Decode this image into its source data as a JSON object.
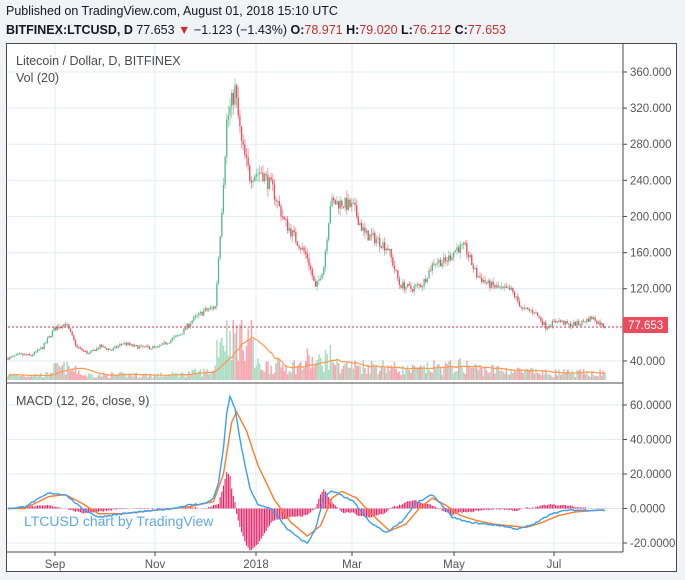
{
  "header": {
    "published": "Published on TradingView.com, August 01, 2018 15:10 UTC",
    "symbol": "BITFINEX:LTCUSD, D",
    "last": "77.653",
    "change_arrow": "▼",
    "change": "−1.123 (−1.43%)",
    "o_label": "O:",
    "o": "78.971",
    "h_label": "H:",
    "h": "79.020",
    "l_label": "L:",
    "l": "76.212",
    "c_label": "C:",
    "c": "77.653"
  },
  "legend": {
    "title": "Litecoin / Dollar, D, BITFINEX",
    "volume": "Vol (20)",
    "macd": "MACD (12, 26, close, 9)"
  },
  "watermark": "LTCUSD chart by TradingView",
  "colors": {
    "up": "#53b987",
    "down": "#eb4d5c",
    "vol_up": "#a9dcc3",
    "vol_down": "#f5a6ae",
    "vol_ma": "#ff9850",
    "macd": "#2196f3",
    "signal": "#ff6d00",
    "hist": "#e91e63",
    "price_line": "#e0304a",
    "grid": "#e1ecf2"
  },
  "chart_data": [
    {
      "type": "candlestick",
      "title": "Litecoin / Dollar, D, BITFINEX",
      "pane": "price",
      "ylim": [
        20,
        375
      ],
      "y_ticks": [
        "360.000",
        "320.000",
        "280.000",
        "240.000",
        "200.000",
        "160.000",
        "120.000",
        "40.000"
      ],
      "last_price_label": "77.653",
      "x_ticks": [
        "Sep",
        "Nov",
        "2018",
        "Mar",
        "May",
        "Jul"
      ],
      "weekly_closes_approx": [
        {
          "x": "2017-08-03",
          "close": 43
        },
        {
          "x": "2017-08-10",
          "close": 47
        },
        {
          "x": "2017-08-17",
          "close": 46
        },
        {
          "x": "2017-08-24",
          "close": 55
        },
        {
          "x": "2017-08-31",
          "close": 75
        },
        {
          "x": "2017-09-07",
          "close": 82
        },
        {
          "x": "2017-09-14",
          "close": 55
        },
        {
          "x": "2017-09-21",
          "close": 48
        },
        {
          "x": "2017-09-28",
          "close": 56
        },
        {
          "x": "2017-10-05",
          "close": 52
        },
        {
          "x": "2017-10-12",
          "close": 60
        },
        {
          "x": "2017-10-19",
          "close": 56
        },
        {
          "x": "2017-10-26",
          "close": 55
        },
        {
          "x": "2017-11-02",
          "close": 55
        },
        {
          "x": "2017-11-09",
          "close": 62
        },
        {
          "x": "2017-11-16",
          "close": 70
        },
        {
          "x": "2017-11-23",
          "close": 85
        },
        {
          "x": "2017-11-30",
          "close": 95
        },
        {
          "x": "2017-12-07",
          "close": 100
        },
        {
          "x": "2017-12-11",
          "close": 210
        },
        {
          "x": "2017-12-14",
          "close": 305
        },
        {
          "x": "2017-12-19",
          "close": 340
        },
        {
          "x": "2017-12-23",
          "close": 280
        },
        {
          "x": "2017-12-28",
          "close": 245
        },
        {
          "x": "2018-01-04",
          "close": 250
        },
        {
          "x": "2018-01-11",
          "close": 230
        },
        {
          "x": "2018-01-18",
          "close": 195
        },
        {
          "x": "2018-01-25",
          "close": 175
        },
        {
          "x": "2018-02-01",
          "close": 155
        },
        {
          "x": "2018-02-06",
          "close": 120
        },
        {
          "x": "2018-02-11",
          "close": 145
        },
        {
          "x": "2018-02-15",
          "close": 215
        },
        {
          "x": "2018-02-22",
          "close": 215
        },
        {
          "x": "2018-03-01",
          "close": 210
        },
        {
          "x": "2018-03-08",
          "close": 180
        },
        {
          "x": "2018-03-15",
          "close": 175
        },
        {
          "x": "2018-03-22",
          "close": 165
        },
        {
          "x": "2018-03-29",
          "close": 125
        },
        {
          "x": "2018-04-05",
          "close": 120
        },
        {
          "x": "2018-04-12",
          "close": 125
        },
        {
          "x": "2018-04-19",
          "close": 150
        },
        {
          "x": "2018-04-26",
          "close": 150
        },
        {
          "x": "2018-05-03",
          "close": 165
        },
        {
          "x": "2018-05-08",
          "close": 165
        },
        {
          "x": "2018-05-15",
          "close": 135
        },
        {
          "x": "2018-05-22",
          "close": 125
        },
        {
          "x": "2018-05-29",
          "close": 120
        },
        {
          "x": "2018-06-05",
          "close": 118
        },
        {
          "x": "2018-06-12",
          "close": 97
        },
        {
          "x": "2018-06-19",
          "close": 95
        },
        {
          "x": "2018-06-26",
          "close": 78
        },
        {
          "x": "2018-07-03",
          "close": 85
        },
        {
          "x": "2018-07-10",
          "close": 80
        },
        {
          "x": "2018-07-17",
          "close": 82
        },
        {
          "x": "2018-07-24",
          "close": 88
        },
        {
          "x": "2018-08-01",
          "close": 77.653
        }
      ]
    },
    {
      "type": "bar",
      "title": "Vol (20)",
      "pane": "price-overlay",
      "series": [
        {
          "name": "Volume"
        },
        {
          "name": "Volume MA 20"
        }
      ]
    },
    {
      "type": "line",
      "title": "MACD (12, 26, close, 9)",
      "pane": "macd",
      "ylim": [
        -25,
        68
      ],
      "y_ticks": [
        "60.0000",
        "40.0000",
        "20.0000",
        "0.0000",
        "-20.0000"
      ],
      "series": [
        {
          "name": "MACD",
          "color": "#2196f3",
          "points_approx": [
            [
              0,
              0
            ],
            [
              10,
              1
            ],
            [
              25,
              9
            ],
            [
              35,
              8
            ],
            [
              45,
              0
            ],
            [
              55,
              -5
            ],
            [
              70,
              -3
            ],
            [
              90,
              -1
            ],
            [
              100,
              0
            ],
            [
              110,
              2
            ],
            [
              120,
              3
            ],
            [
              125,
              6
            ],
            [
              128,
              15
            ],
            [
              131,
              35
            ],
            [
              133,
              55
            ],
            [
              135,
              65
            ],
            [
              138,
              58
            ],
            [
              142,
              35
            ],
            [
              147,
              12
            ],
            [
              152,
              2
            ],
            [
              160,
              0
            ],
            [
              170,
              -12
            ],
            [
              178,
              -18
            ],
            [
              182,
              -20
            ],
            [
              187,
              -12
            ],
            [
              192,
              7
            ],
            [
              197,
              10
            ],
            [
              202,
              8
            ],
            [
              210,
              4
            ],
            [
              220,
              -8
            ],
            [
              230,
              -14
            ],
            [
              240,
              -7
            ],
            [
              248,
              3
            ],
            [
              254,
              6
            ],
            [
              258,
              8
            ],
            [
              263,
              3
            ],
            [
              270,
              -5
            ],
            [
              280,
              -8
            ],
            [
              290,
              -9
            ],
            [
              300,
              -10
            ],
            [
              310,
              -12
            ],
            [
              320,
              -9
            ],
            [
              330,
              -3
            ],
            [
              340,
              -1
            ],
            [
              358,
              -1
            ]
          ]
        },
        {
          "name": "Signal",
          "color": "#ff6d00",
          "points_approx": [
            [
              0,
              0
            ],
            [
              10,
              0
            ],
            [
              25,
              7
            ],
            [
              35,
              8
            ],
            [
              45,
              3
            ],
            [
              55,
              -3
            ],
            [
              70,
              -3
            ],
            [
              90,
              -1
            ],
            [
              110,
              1
            ],
            [
              125,
              4
            ],
            [
              131,
              20
            ],
            [
              136,
              50
            ],
            [
              139,
              56
            ],
            [
              145,
              45
            ],
            [
              152,
              25
            ],
            [
              162,
              5
            ],
            [
              172,
              -8
            ],
            [
              182,
              -16
            ],
            [
              190,
              -10
            ],
            [
              197,
              6
            ],
            [
              203,
              10
            ],
            [
              212,
              6
            ],
            [
              222,
              -4
            ],
            [
              232,
              -13
            ],
            [
              242,
              -9
            ],
            [
              250,
              0
            ],
            [
              258,
              6
            ],
            [
              266,
              2
            ],
            [
              275,
              -4
            ],
            [
              285,
              -7
            ],
            [
              295,
              -9
            ],
            [
              305,
              -10
            ],
            [
              315,
              -11
            ],
            [
              325,
              -8
            ],
            [
              335,
              -4
            ],
            [
              345,
              -2
            ],
            [
              358,
              -1
            ]
          ]
        },
        {
          "name": "Histogram",
          "color": "#e91e63"
        }
      ]
    }
  ]
}
